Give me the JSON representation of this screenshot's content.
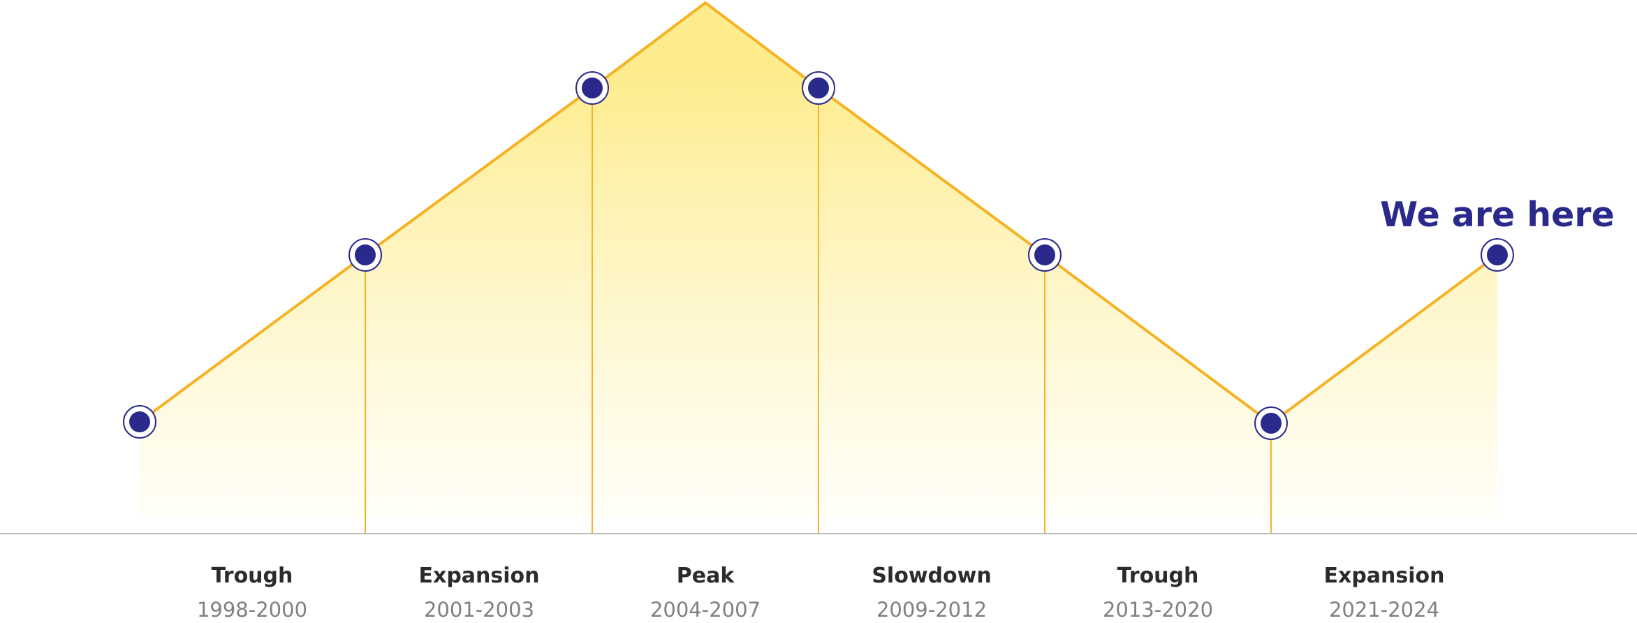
{
  "diagram": {
    "here_label": "We are here",
    "phases": [
      {
        "name": "Trough",
        "years": "1998-2000"
      },
      {
        "name": "Expansion",
        "years": "2001-2003"
      },
      {
        "name": "Peak",
        "years": "2004-2007"
      },
      {
        "name": "Slowdown",
        "years": "2009-2012"
      },
      {
        "name": "Trough",
        "years": "2013-2020"
      },
      {
        "name": "Expansion",
        "years": "2021-2024"
      }
    ],
    "colors": {
      "line": "#f5b324",
      "fill_top": "#fde97a",
      "fill_bottom": "#fffdf2",
      "marker": "#2a2a8c",
      "baseline": "#b9b9b9",
      "here_label": "#2a2a8c"
    }
  }
}
